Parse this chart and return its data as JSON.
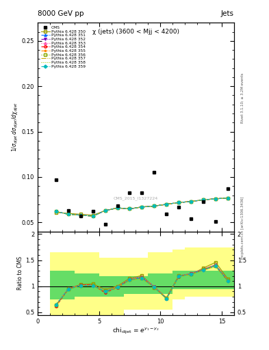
{
  "title_top": "8000 GeV pp",
  "title_right": "Jets",
  "plot_title": "χ (jets) (3600 < Mjj < 4200)",
  "cms_label": "CMS_2015_I1327224",
  "rivet_label": "Rivet 3.1.10; ≥ 3.2M events",
  "mcplots_label": "mcplots.cern.ch [arXiv:1306.3436]",
  "ylabel_main": "1/σ_{dijet} dσ_{dijet}/dchi_{dijet}",
  "ylabel_ratio": "Ratio to CMS",
  "xlabel": "chi$_{dijet}$ = $e^{y_1-y_2}$",
  "xlim": [
    0,
    16
  ],
  "ylim_main": [
    0.04,
    0.27
  ],
  "ylim_ratio": [
    0.45,
    2.05
  ],
  "cms_x": [
    1.5,
    2.5,
    3.5,
    4.5,
    5.5,
    6.5,
    7.5,
    8.5,
    9.5,
    10.5,
    11.5,
    12.5,
    13.5,
    14.5,
    15.5
  ],
  "cms_y": [
    0.097,
    0.063,
    0.057,
    0.062,
    0.048,
    0.068,
    0.083,
    0.083,
    0.105,
    0.059,
    0.067,
    0.054,
    0.073,
    0.051,
    0.087
  ],
  "theory_x": [
    1.5,
    2.5,
    3.5,
    4.5,
    5.5,
    6.5,
    7.5,
    8.5,
    9.5,
    10.5,
    11.5,
    12.5,
    13.5,
    14.5,
    15.5
  ],
  "theory_y_350": [
    0.061,
    0.06,
    0.059,
    0.058,
    0.063,
    0.066,
    0.065,
    0.067,
    0.068,
    0.07,
    0.072,
    0.073,
    0.075,
    0.076,
    0.077
  ],
  "theory_y_351": [
    0.062,
    0.059,
    0.058,
    0.057,
    0.063,
    0.066,
    0.065,
    0.067,
    0.068,
    0.07,
    0.072,
    0.073,
    0.075,
    0.076,
    0.077
  ],
  "theory_y_352": [
    0.062,
    0.059,
    0.058,
    0.057,
    0.063,
    0.066,
    0.065,
    0.067,
    0.068,
    0.07,
    0.072,
    0.073,
    0.075,
    0.076,
    0.077
  ],
  "theory_y_353": [
    0.062,
    0.059,
    0.058,
    0.057,
    0.063,
    0.066,
    0.065,
    0.067,
    0.068,
    0.07,
    0.072,
    0.073,
    0.075,
    0.076,
    0.077
  ],
  "theory_y_354": [
    0.062,
    0.059,
    0.058,
    0.057,
    0.063,
    0.066,
    0.065,
    0.067,
    0.068,
    0.07,
    0.072,
    0.073,
    0.075,
    0.076,
    0.077
  ],
  "theory_y_355": [
    0.062,
    0.059,
    0.058,
    0.057,
    0.063,
    0.066,
    0.065,
    0.067,
    0.068,
    0.07,
    0.072,
    0.073,
    0.075,
    0.076,
    0.077
  ],
  "theory_y_356": [
    0.062,
    0.059,
    0.058,
    0.057,
    0.063,
    0.066,
    0.065,
    0.067,
    0.068,
    0.07,
    0.072,
    0.073,
    0.075,
    0.076,
    0.077
  ],
  "theory_y_357": [
    0.062,
    0.059,
    0.058,
    0.057,
    0.063,
    0.066,
    0.065,
    0.067,
    0.068,
    0.07,
    0.072,
    0.073,
    0.075,
    0.076,
    0.077
  ],
  "theory_y_358": [
    0.062,
    0.059,
    0.058,
    0.057,
    0.063,
    0.066,
    0.065,
    0.067,
    0.068,
    0.07,
    0.072,
    0.073,
    0.075,
    0.076,
    0.077
  ],
  "theory_y_359": [
    0.062,
    0.059,
    0.058,
    0.057,
    0.063,
    0.066,
    0.065,
    0.067,
    0.068,
    0.07,
    0.072,
    0.073,
    0.075,
    0.076,
    0.077
  ],
  "ratio_y_350": [
    0.629,
    0.952,
    1.035,
    1.048,
    0.938,
    1.003,
    1.156,
    1.206,
    0.971,
    0.781,
    1.21,
    1.227,
    1.351,
    1.459,
    1.143
  ],
  "ratio_y_351": [
    0.639,
    0.952,
    1.018,
    1.021,
    0.898,
    0.985,
    1.138,
    1.178,
    0.997,
    0.762,
    1.196,
    1.245,
    1.327,
    1.411,
    1.117
  ],
  "ratio_y_352": [
    0.639,
    0.944,
    1.022,
    1.024,
    0.891,
    0.98,
    1.128,
    1.167,
    0.993,
    0.773,
    1.191,
    1.243,
    1.32,
    1.404,
    1.104
  ],
  "ratio_y_353": [
    0.657,
    0.96,
    1.028,
    1.025,
    0.911,
    0.993,
    1.147,
    1.183,
    1.0,
    0.774,
    1.199,
    1.253,
    1.337,
    1.418,
    1.121
  ],
  "ratio_y_354": [
    0.619,
    0.944,
    1.024,
    1.024,
    0.876,
    0.977,
    1.126,
    1.162,
    0.983,
    0.769,
    1.186,
    1.24,
    1.313,
    1.394,
    1.098
  ],
  "ratio_y_355": [
    0.639,
    0.948,
    1.018,
    1.02,
    0.904,
    0.99,
    1.135,
    1.167,
    0.998,
    0.768,
    1.199,
    1.239,
    1.323,
    1.406,
    1.117
  ],
  "ratio_y_356": [
    0.649,
    0.948,
    1.016,
    1.02,
    0.905,
    0.981,
    1.133,
    1.157,
    0.988,
    0.776,
    1.199,
    1.235,
    1.325,
    1.395,
    1.114
  ],
  "ratio_y_357": [
    0.639,
    0.944,
    1.012,
    1.014,
    0.895,
    0.976,
    1.119,
    1.15,
    0.975,
    0.76,
    1.193,
    1.226,
    1.308,
    1.386,
    1.096
  ],
  "ratio_y_358": [
    0.649,
    0.94,
    1.01,
    1.01,
    0.893,
    0.97,
    1.115,
    1.142,
    0.975,
    0.754,
    1.186,
    1.22,
    1.304,
    1.374,
    1.09
  ],
  "ratio_y_359": [
    0.649,
    0.944,
    1.016,
    1.016,
    0.9,
    0.978,
    1.125,
    1.157,
    0.98,
    0.762,
    1.196,
    1.231,
    1.317,
    1.392,
    1.101
  ],
  "yellow_band_lo": [
    0.45,
    0.45,
    0.45,
    0.45,
    0.45,
    0.45,
    0.55,
    0.55,
    0.55,
    0.55,
    0.75,
    0.8,
    0.8,
    0.8,
    0.8
  ],
  "yellow_band_hi": [
    1.65,
    1.65,
    1.65,
    1.65,
    1.55,
    1.55,
    1.55,
    1.55,
    1.65,
    1.65,
    1.7,
    1.75,
    1.75,
    1.75,
    1.75
  ],
  "green_band_lo": [
    0.75,
    0.75,
    0.8,
    0.8,
    0.8,
    0.8,
    0.85,
    0.85,
    0.85,
    0.85,
    0.95,
    0.95,
    0.95,
    0.95,
    0.95
  ],
  "green_band_hi": [
    1.3,
    1.3,
    1.25,
    1.25,
    1.2,
    1.2,
    1.2,
    1.2,
    1.25,
    1.25,
    1.3,
    1.3,
    1.3,
    1.3,
    1.3
  ],
  "series": [
    {
      "label": "Pythia 6.428 350",
      "color": "#999900",
      "linestyle": "-",
      "marker": "s",
      "fillstyle": "none"
    },
    {
      "label": "Pythia 6.428 351",
      "color": "#0066ff",
      "linestyle": "--",
      "marker": "^",
      "fillstyle": "full"
    },
    {
      "label": "Pythia 6.428 352",
      "color": "#7700bb",
      "linestyle": "-.",
      "marker": "v",
      "fillstyle": "full"
    },
    {
      "label": "Pythia 6.428 353",
      "color": "#ff44aa",
      "linestyle": ":",
      "marker": "^",
      "fillstyle": "none"
    },
    {
      "label": "Pythia 6.428 354",
      "color": "#ff0000",
      "linestyle": "--",
      "marker": "o",
      "fillstyle": "none"
    },
    {
      "label": "Pythia 6.428 355",
      "color": "#ff8800",
      "linestyle": "-.",
      "marker": "*",
      "fillstyle": "full"
    },
    {
      "label": "Pythia 6.428 356",
      "color": "#88aa00",
      "linestyle": ":",
      "marker": "s",
      "fillstyle": "none"
    },
    {
      "label": "Pythia 6.428 357",
      "color": "#ccaa00",
      "linestyle": "-.",
      "marker": null,
      "fillstyle": "none"
    },
    {
      "label": "Pythia 6.428 358",
      "color": "#aacc00",
      "linestyle": ":",
      "marker": null,
      "fillstyle": "none"
    },
    {
      "label": "Pythia 6.428 359",
      "color": "#00bbbb",
      "linestyle": "--",
      "marker": "D",
      "fillstyle": "full"
    }
  ],
  "bg_color": "#ffffff"
}
